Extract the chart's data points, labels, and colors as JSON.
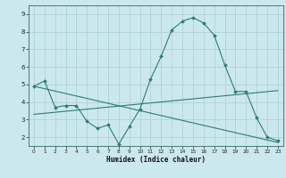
{
  "line1_x": [
    0,
    1,
    2,
    3,
    4,
    5,
    6,
    7,
    8,
    9,
    10,
    11,
    12,
    13,
    14,
    15,
    16,
    17,
    18,
    19,
    20,
    21,
    22,
    23
  ],
  "line1_y": [
    4.9,
    5.2,
    3.7,
    3.8,
    3.8,
    2.9,
    2.5,
    2.7,
    1.6,
    2.6,
    3.6,
    5.3,
    6.6,
    8.1,
    8.6,
    8.8,
    8.5,
    7.8,
    6.1,
    4.6,
    4.6,
    3.1,
    2.0,
    1.8
  ],
  "line2_x": [
    0,
    23
  ],
  "line2_y": [
    4.9,
    1.7
  ],
  "line3_x": [
    0,
    23
  ],
  "line3_y": [
    3.3,
    4.65
  ],
  "color": "#2e7d6e",
  "bg_color": "#cce8ef",
  "grid_color": "#aacdd6",
  "xlabel": "Humidex (Indice chaleur)",
  "ylim": [
    1.5,
    9.5
  ],
  "xlim": [
    -0.5,
    23.5
  ],
  "yticks": [
    2,
    3,
    4,
    5,
    6,
    7,
    8,
    9
  ],
  "xticks": [
    0,
    1,
    2,
    3,
    4,
    5,
    6,
    7,
    8,
    9,
    10,
    11,
    12,
    13,
    14,
    15,
    16,
    17,
    18,
    19,
    20,
    21,
    22,
    23
  ]
}
